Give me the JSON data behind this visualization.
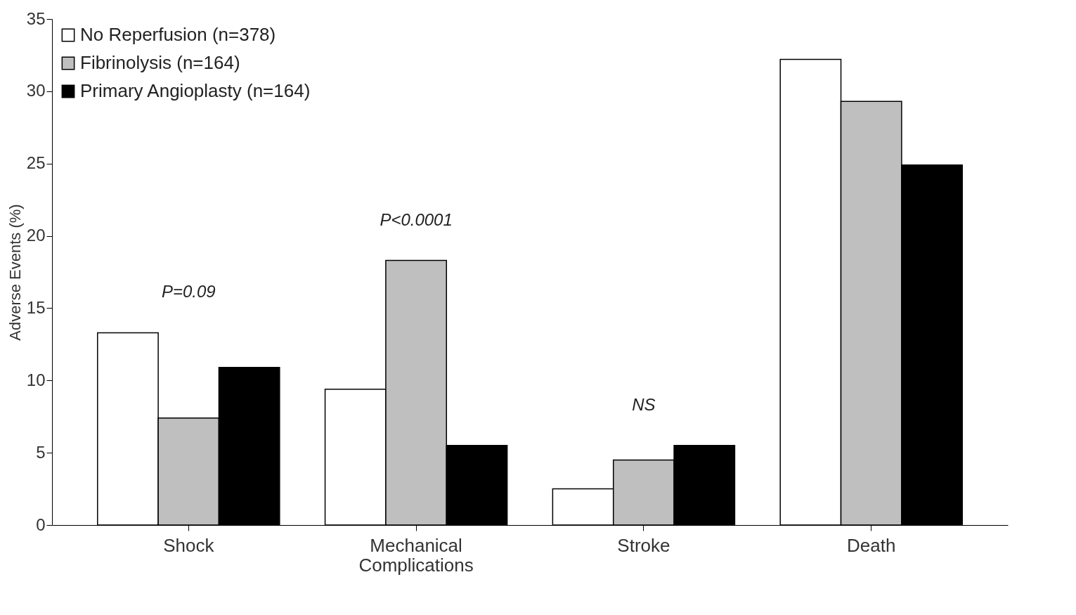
{
  "chart_data": {
    "type": "bar",
    "ylabel": "Adverse Events (%)",
    "categories": [
      "Shock",
      "Mechanical Complications",
      "Stroke",
      "Death"
    ],
    "series": [
      {
        "name": "No Reperfusion (n=378)",
        "color": "#ffffff",
        "values": [
          13.3,
          9.4,
          2.5,
          32.2
        ]
      },
      {
        "name": "Fibrinolysis (n=164)",
        "color": "#bfbfbf",
        "values": [
          7.4,
          18.3,
          4.5,
          29.3
        ]
      },
      {
        "name": "Primary Angioplasty (n=164)",
        "color": "#000000",
        "values": [
          10.9,
          5.5,
          5.5,
          24.9
        ]
      }
    ],
    "ylim": [
      0,
      35
    ],
    "yticks": [
      0,
      5,
      10,
      15,
      20,
      25,
      30,
      35
    ],
    "grid": false,
    "legend": "top left",
    "annotations": [
      "P=0.09",
      "P<0.0001",
      "NS"
    ]
  }
}
